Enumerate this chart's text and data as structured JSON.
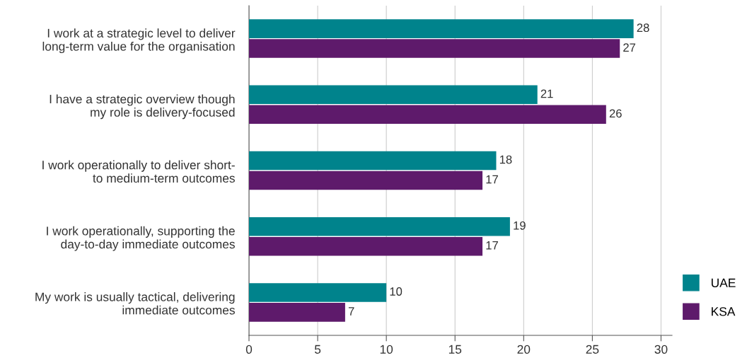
{
  "chart_data": {
    "type": "bar",
    "orientation": "horizontal",
    "categories": [
      "I work at a strategic level to deliver\nlong-term value for the organisation",
      "I have a strategic overview though\nmy role is delivery-focused",
      "I work operationally to deliver short-\nto medium-term outcomes",
      "I work operationally, supporting the\nday-to-day immediate outcomes",
      "My work is usually tactical, delivering\nimmediate outcomes"
    ],
    "series": [
      {
        "name": "UAE",
        "color": "#00838c",
        "values": [
          28,
          21,
          18,
          19,
          10
        ]
      },
      {
        "name": "KSA",
        "color": "#5e1a6b",
        "values": [
          27,
          26,
          17,
          17,
          7
        ]
      }
    ],
    "xlim": [
      0,
      30.8
    ],
    "xticks": [
      0,
      5,
      10,
      15,
      20,
      25,
      30
    ],
    "grid": "x",
    "data_labels": true,
    "legend": "bottom right"
  }
}
